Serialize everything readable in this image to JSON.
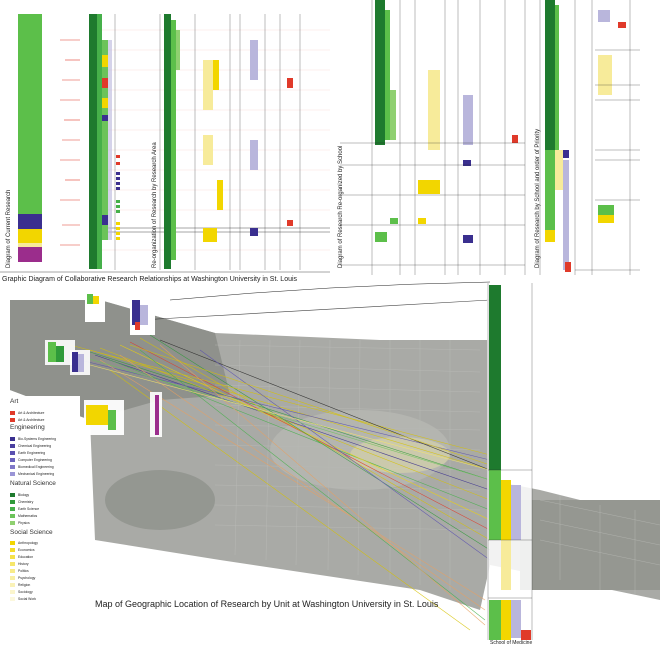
{
  "captions": {
    "top_diagram": "Graphic Diagram of Collaborative Research Relationships at Washington University in St. Louis",
    "map": "Map of Geographic Location of Research by Unit at Washington University in St. Louis",
    "current_research": "Diagram of Current Research",
    "reorganized_area": "Re-organization of Research by Research Area",
    "reorganized_school": "Diagram of Research Re-organized by School",
    "school_priority": "Diagram of Research by School and order of Priority",
    "school_of_medicine": "School of Medicine"
  },
  "legend": {
    "groups": [
      {
        "title": "Art",
        "items": [
          {
            "label": "Art & Architecture",
            "color": "#e03a2a"
          },
          {
            "label": "Art & Architecture",
            "color": "#e03a2a"
          }
        ]
      },
      {
        "title": "Engineering",
        "items": [
          {
            "label": "Bio-Systems Engineering",
            "color": "#3a2f8f"
          },
          {
            "label": "Chemical Engineering",
            "color": "#4a3fa0"
          },
          {
            "label": "Earth Engineering",
            "color": "#5a50b0"
          },
          {
            "label": "Computer Engineering",
            "color": "#6a62bd"
          },
          {
            "label": "Biomedical Engineering",
            "color": "#7f78c8"
          },
          {
            "label": "Mechanical Engineering",
            "color": "#9a95d6"
          }
        ]
      },
      {
        "title": "Natural Science",
        "items": [
          {
            "label": "Biology",
            "color": "#1e7a2e"
          },
          {
            "label": "Chemistry",
            "color": "#2f9a3a"
          },
          {
            "label": "Earth Science",
            "color": "#46b04a"
          },
          {
            "label": "Mathematics",
            "color": "#6cc35a"
          },
          {
            "label": "Physics",
            "color": "#8fd070"
          }
        ]
      },
      {
        "title": "Social Science",
        "items": [
          {
            "label": "Anthropology",
            "color": "#f2d600"
          },
          {
            "label": "Economics",
            "color": "#f4dc2a"
          },
          {
            "label": "Education",
            "color": "#f5e14a"
          },
          {
            "label": "History",
            "color": "#f6e66a"
          },
          {
            "label": "Politics",
            "color": "#f8eb88"
          },
          {
            "label": "Psychology",
            "color": "#f9efa2"
          },
          {
            "label": "Religion",
            "color": "#faf2b8"
          },
          {
            "label": "Sociology",
            "color": "#fbf5cc"
          },
          {
            "label": "Social Work",
            "color": "#fcf8dd"
          }
        ]
      }
    ]
  },
  "colors": {
    "dark_green": "#1e7a2e",
    "green": "#5cbf4a",
    "yellow": "#f2d600",
    "light_yellow": "#f7eb9a",
    "purple": "#3a2f8f",
    "lavender": "#b9b6dc",
    "red": "#e03a2a",
    "magenta": "#9b2d8c",
    "map_gray": "#a9aaa6"
  }
}
